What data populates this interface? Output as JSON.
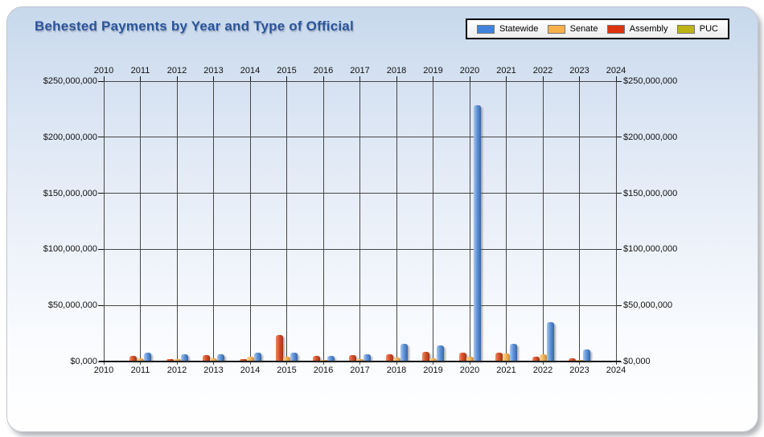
{
  "title": "Behested Payments by Year and Type of Official",
  "chart_data": {
    "type": "bar",
    "title": "Behested Payments by Year and Type of Official",
    "categories": [
      "2010",
      "2011",
      "2012",
      "2013",
      "2014",
      "2015",
      "2016",
      "2017",
      "2018",
      "2019",
      "2020",
      "2021",
      "2022",
      "2023",
      "2024"
    ],
    "series": [
      {
        "name": "Statewide",
        "legend_color": "#3f83dd",
        "color_light": "#a9c6ec",
        "color": "#5f93d8",
        "color_dark": "#3566a8",
        "values": [
          0,
          7000000,
          6000000,
          5500000,
          7000000,
          7500000,
          4500000,
          5500000,
          15000000,
          13500000,
          228000000,
          15000000,
          34500000,
          10000000,
          0
        ]
      },
      {
        "name": "Senate",
        "legend_color": "#f8b04c",
        "color_light": "#fcd99e",
        "color": "#f4b45c",
        "color_dark": "#c8893a",
        "values": [
          0,
          2500000,
          1500000,
          2000000,
          3500000,
          3500000,
          1000000,
          1500000,
          3000000,
          2000000,
          3500000,
          6500000,
          5500000,
          800000,
          0
        ]
      },
      {
        "name": "Assembly",
        "legend_color": "#dd3310",
        "color_light": "#ef8a62",
        "color": "#d4512c",
        "color_dark": "#9e3513",
        "values": [
          0,
          4500000,
          1700000,
          5000000,
          1200000,
          23000000,
          4000000,
          5000000,
          5500000,
          8000000,
          7000000,
          7000000,
          3500000,
          2000000,
          0
        ]
      },
      {
        "name": "PUC",
        "legend_color": "#bcb314",
        "color_light": "#d6d06a",
        "color": "#b9b215",
        "color_dark": "#8a850e",
        "values": [
          0,
          0,
          0,
          0,
          0,
          0,
          0,
          0,
          0,
          0,
          0,
          0,
          0,
          0,
          0
        ]
      }
    ],
    "ylim": [
      0,
      250000000
    ],
    "ytick_interval": 50000000,
    "ytick_labels": [
      "$0,000",
      "$50,000,000",
      "$100,000,000",
      "$150,000,000",
      "$200,000,000",
      "$250,000,000"
    ],
    "xlabel": "",
    "ylabel": "",
    "grid": true,
    "legend_position": "top-right",
    "x_labels_shown": "top and bottom",
    "y_labels_shown": "left and right"
  }
}
